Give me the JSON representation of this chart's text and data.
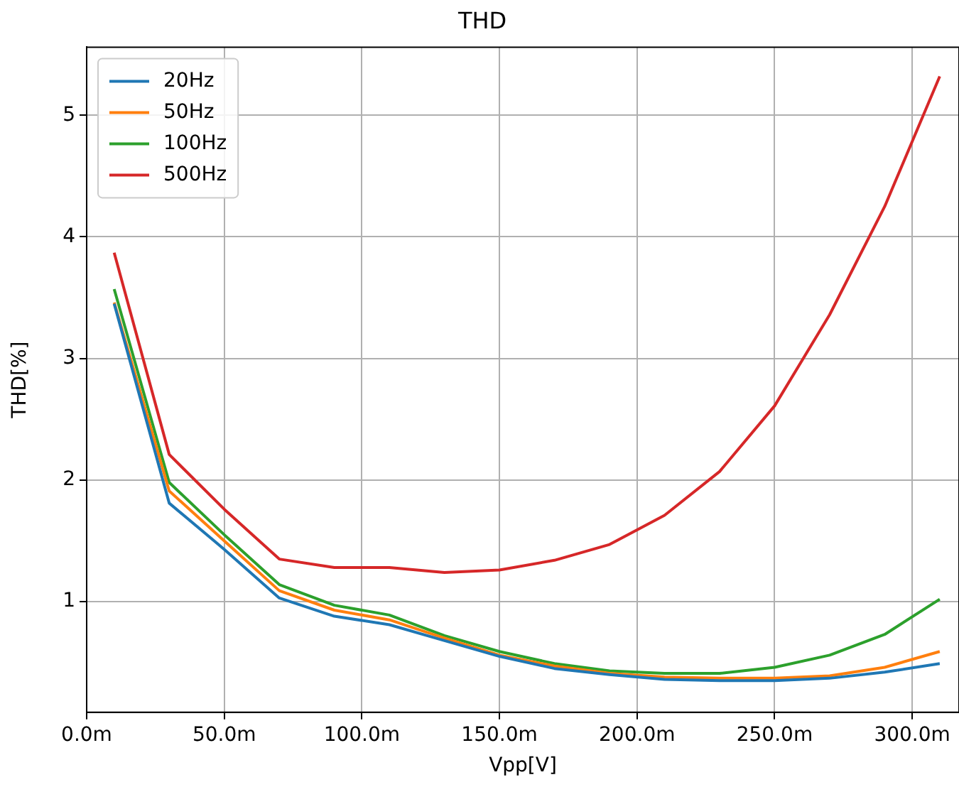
{
  "chart_data": {
    "type": "line",
    "title": "THD",
    "xlabel": "Vpp[V]",
    "ylabel": "THD[%]",
    "x": [
      10,
      30,
      50,
      70,
      90,
      110,
      130,
      150,
      170,
      190,
      210,
      230,
      250,
      270,
      290,
      310
    ],
    "series": [
      {
        "name": "20Hz",
        "color": "#1f77b4",
        "values": [
          3.45,
          1.81,
          1.43,
          1.03,
          0.88,
          0.81,
          0.68,
          0.55,
          0.45,
          0.4,
          0.36,
          0.35,
          0.35,
          0.37,
          0.42,
          0.49
        ]
      },
      {
        "name": "50Hz",
        "color": "#ff7f0e",
        "values": [
          3.46,
          1.91,
          1.5,
          1.09,
          0.93,
          0.85,
          0.7,
          0.56,
          0.47,
          0.41,
          0.38,
          0.37,
          0.37,
          0.39,
          0.46,
          0.59
        ]
      },
      {
        "name": "100Hz",
        "color": "#2ca02c",
        "values": [
          3.57,
          1.98,
          1.55,
          1.14,
          0.97,
          0.89,
          0.72,
          0.59,
          0.49,
          0.43,
          0.41,
          0.41,
          0.46,
          0.56,
          0.73,
          1.02
        ]
      },
      {
        "name": "500Hz",
        "color": "#d62728",
        "values": [
          3.87,
          2.21,
          1.76,
          1.35,
          1.28,
          1.28,
          1.24,
          1.26,
          1.34,
          1.47,
          1.71,
          2.07,
          2.61,
          3.36,
          4.25,
          5.32
        ]
      }
    ],
    "xlim": [
      0,
      317
    ],
    "ylim": [
      0.09,
      5.56
    ],
    "xticks": [
      {
        "value": 0,
        "label": "0.0m"
      },
      {
        "value": 50,
        "label": "50.0m"
      },
      {
        "value": 100,
        "label": "100.0m"
      },
      {
        "value": 150,
        "label": "150.0m"
      },
      {
        "value": 200,
        "label": "200.0m"
      },
      {
        "value": 250,
        "label": "250.0m"
      },
      {
        "value": 300,
        "label": "300.0m"
      }
    ],
    "yticks": [
      1,
      2,
      3,
      4,
      5
    ],
    "grid": true,
    "legend": "top left",
    "marker": "none",
    "line_style": "solid"
  }
}
